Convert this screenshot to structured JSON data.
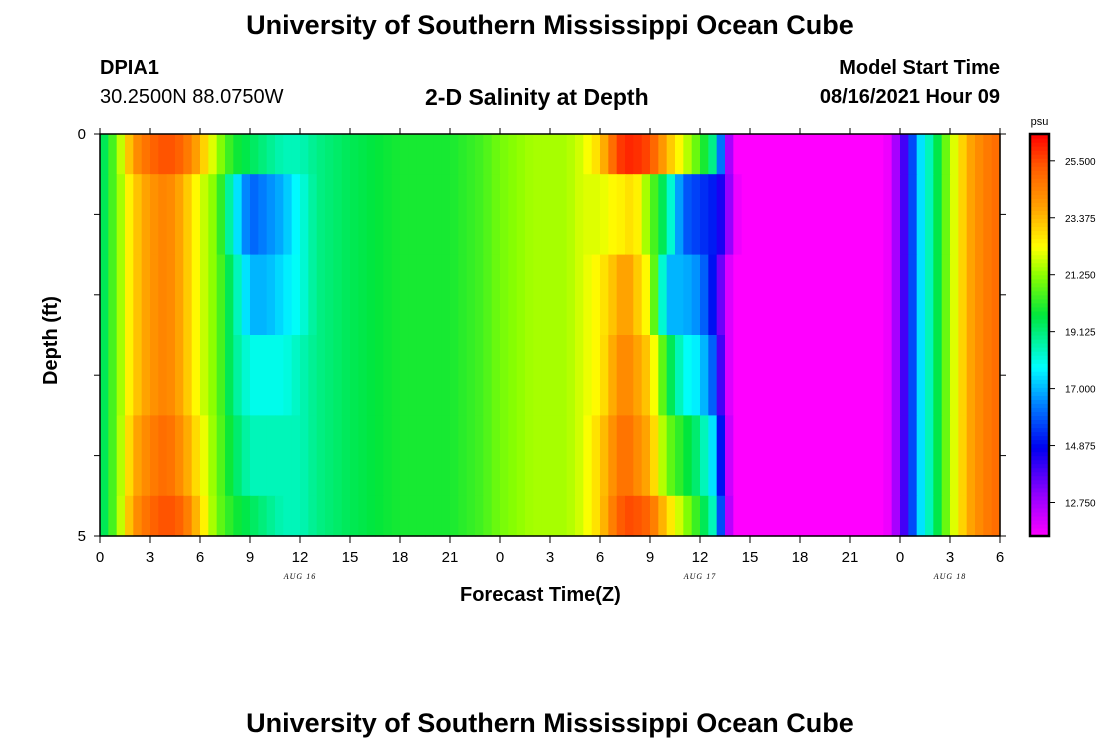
{
  "header": {
    "title": "University of Southern Mississippi Ocean Cube",
    "station_id": "DPIA1",
    "station_coords": "30.2500N  88.0750W",
    "plot_title": "2-D Salinity at Depth",
    "model_start_label": "Model Start Time",
    "model_start_value": "08/16/2021 Hour 09"
  },
  "footer": {
    "title": "University of Southern Mississippi Ocean Cube"
  },
  "chart_data": {
    "type": "heatmap",
    "title": "2-D Salinity at Depth",
    "xlabel": "Forecast Time(Z)",
    "ylabel": "Depth (ft)",
    "x_hours": [
      0,
      54
    ],
    "x_ticks": [
      "0",
      "3",
      "6",
      "9",
      "12",
      "15",
      "18",
      "21",
      "0",
      "3",
      "6",
      "9",
      "12",
      "15",
      "18",
      "21",
      "0",
      "3",
      "6"
    ],
    "date_labels": [
      {
        "label": "AUG 16",
        "hour": 12
      },
      {
        "label": "AUG 17",
        "hour": 36
      },
      {
        "label": "AUG 18",
        "hour": 51
      }
    ],
    "y_ticks": [
      "0",
      "5"
    ],
    "ylim": [
      0,
      5
    ],
    "depth_layers": [
      0.5,
      1.5,
      2.5,
      3.5,
      4.5
    ],
    "colorbar": {
      "unit": "psu",
      "min": 11.5,
      "max": 26.5,
      "labels": [
        "25.500",
        "23.375",
        "21.250",
        "19.125",
        "17.000",
        "14.875",
        "12.750"
      ],
      "label_values": [
        25.5,
        23.375,
        21.25,
        19.125,
        17.0,
        14.875,
        12.75
      ]
    },
    "salinity": {
      "keys_hours": [
        0,
        0.5,
        1,
        2,
        3,
        4,
        5,
        6,
        7,
        8,
        9,
        10,
        11,
        12,
        13,
        15,
        18,
        21,
        23,
        24,
        26,
        28,
        29,
        30,
        31,
        31.5,
        32,
        33,
        34,
        35,
        36,
        37,
        37.5,
        38,
        38.5,
        39,
        40,
        42,
        45,
        47,
        47.5,
        48,
        48.5,
        49,
        50,
        51,
        52,
        53,
        54
      ],
      "rows": [
        [
          19,
          20,
          21,
          23,
          24,
          24.5,
          23.5,
          22,
          21,
          18,
          16,
          16.5,
          17,
          18,
          19,
          19.5,
          20,
          20,
          20.5,
          21,
          21.5,
          21.5,
          22,
          22,
          22.5,
          22.5,
          23,
          21,
          19,
          16,
          15.5,
          15,
          14,
          12,
          11.5,
          11.5,
          11.5,
          11.5,
          11.5,
          11.5,
          12,
          13.5,
          14.5,
          17,
          19,
          21.5,
          23.5,
          24.5,
          25
        ],
        [
          19,
          20,
          21,
          23,
          24,
          24.5,
          23.5,
          22,
          21,
          19,
          17,
          17,
          17.5,
          18,
          19,
          19.5,
          20,
          20,
          20.5,
          21,
          21.5,
          21.5,
          22,
          22.5,
          23.5,
          24,
          23.5,
          22,
          17,
          17,
          16.5,
          14.5,
          12.5,
          11.5,
          11.5,
          11.5,
          11.5,
          11.5,
          11.5,
          11.5,
          12,
          13.5,
          14.5,
          17,
          19,
          21.5,
          23.5,
          24.5,
          25
        ],
        [
          19,
          20,
          21,
          23,
          24,
          24.5,
          23.5,
          22,
          21,
          19,
          18,
          18,
          18,
          18.5,
          19,
          19.5,
          20,
          20,
          20.5,
          21,
          21.5,
          21.5,
          22,
          22.5,
          24,
          24.5,
          24,
          23,
          20,
          18,
          17.5,
          15.5,
          12.5,
          11.5,
          11.5,
          11.5,
          11.5,
          11.5,
          11.5,
          11.5,
          12,
          13.5,
          14.5,
          17,
          19,
          21.5,
          23.5,
          24.5,
          25
        ],
        [
          19,
          20,
          21,
          23.5,
          24.5,
          25,
          24,
          22.5,
          21,
          19.5,
          18.5,
          18.5,
          18.5,
          18.5,
          19,
          19.5,
          20,
          20,
          20.5,
          21,
          21.5,
          21.5,
          22,
          23,
          24.5,
          25,
          24.5,
          23.5,
          21,
          20,
          19,
          17,
          13,
          11.5,
          11.5,
          11.5,
          11.5,
          11.5,
          11.5,
          11.5,
          12,
          13.5,
          14.5,
          17,
          19,
          21.5,
          23.5,
          24.5,
          25
        ],
        [
          19,
          20,
          21,
          24,
          25,
          25.5,
          25,
          23,
          21,
          20,
          19.5,
          19,
          18.5,
          18.5,
          19,
          19.5,
          20,
          20,
          20.5,
          21,
          21.5,
          21.5,
          22,
          23,
          25,
          25.5,
          25.5,
          25,
          23,
          21.5,
          20,
          18,
          13.5,
          11.5,
          11.5,
          11.5,
          11.5,
          11.5,
          11.5,
          11.5,
          12,
          13.5,
          14.5,
          17,
          19,
          21.5,
          23.5,
          24.5,
          25
        ]
      ],
      "top_row": [
        19,
        20,
        21,
        24,
        25,
        25.5,
        25,
        23.5,
        21.5,
        20,
        19.5,
        19,
        18.5,
        18.5,
        19,
        19.5,
        20,
        20,
        20.5,
        21,
        21.5,
        21.5,
        22,
        23,
        25.5,
        26,
        26,
        25.5,
        23.5,
        22,
        20.5,
        18.5,
        14,
        11.5,
        11.5,
        11.5,
        11.5,
        11.5,
        11.5,
        11.5,
        12,
        13.5,
        14.5,
        17,
        19,
        21.5,
        23.5,
        24.5,
        25
      ]
    }
  }
}
